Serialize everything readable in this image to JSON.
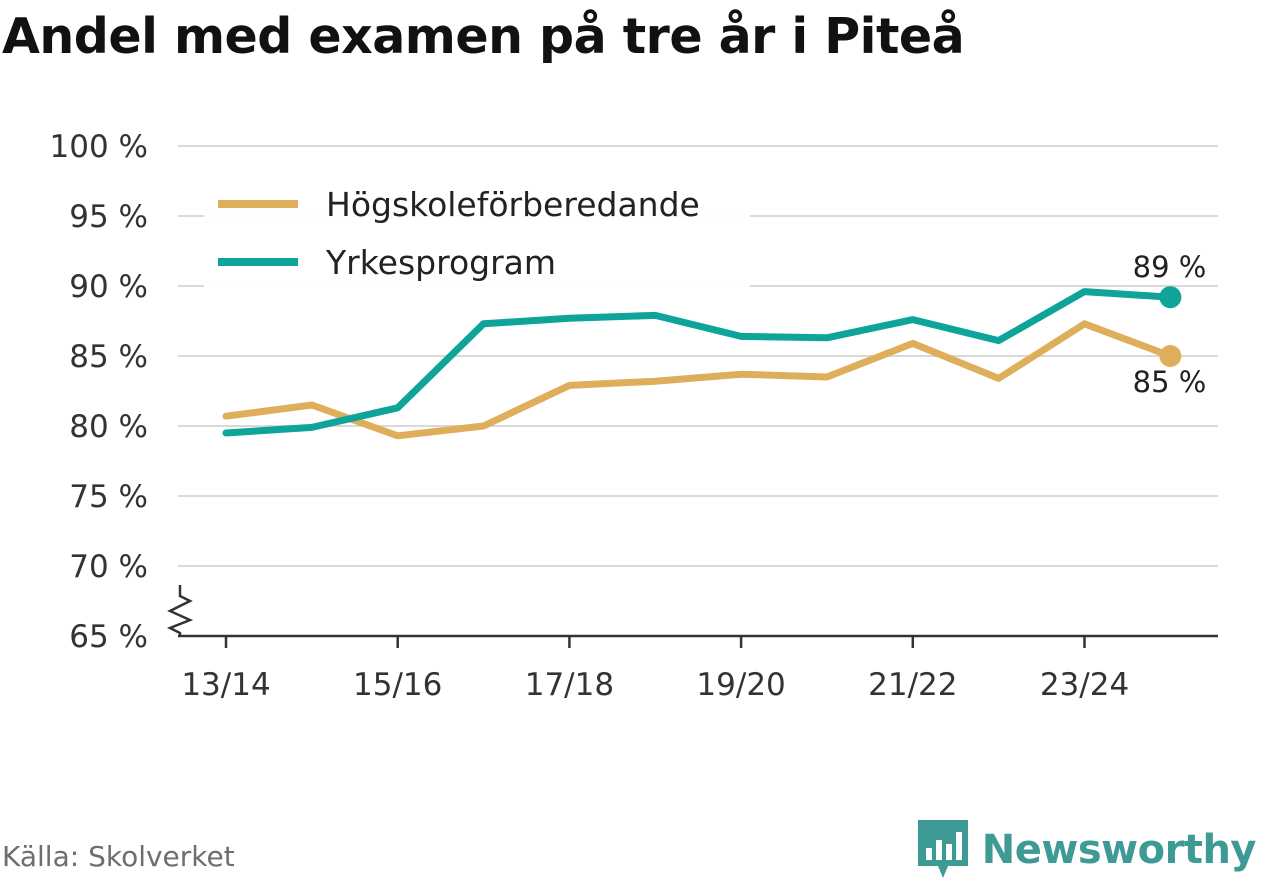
{
  "chart_data": {
    "type": "line",
    "title": "Andel med examen på tre år i Piteå",
    "x": [
      "13/14",
      "14/15",
      "15/16",
      "16/17",
      "17/18",
      "18/19",
      "19/20",
      "20/21",
      "21/22",
      "22/23",
      "23/24",
      "24/25"
    ],
    "x_tick_labels": [
      "13/14",
      "15/16",
      "17/18",
      "19/20",
      "21/22",
      "23/24"
    ],
    "y_tick_labels": [
      "100 %",
      "95 %",
      "90 %",
      "85 %",
      "80 %",
      "75 %",
      "70 %",
      "65 %"
    ],
    "ylim": [
      65,
      100
    ],
    "y_axis_break": true,
    "grid": true,
    "legend_position": "top-left",
    "series": [
      {
        "name": "Högskoleförberedande",
        "color": "#deae5a",
        "values": [
          80.7,
          81.5,
          79.3,
          80.0,
          82.9,
          83.2,
          83.7,
          83.5,
          85.9,
          83.4,
          87.3,
          85.0
        ],
        "end_label": "85 %"
      },
      {
        "name": "Yrkesprogram",
        "color": "#0ea499",
        "values": [
          79.5,
          79.9,
          81.3,
          87.3,
          87.7,
          87.9,
          86.4,
          86.3,
          87.6,
          86.1,
          89.6,
          89.2
        ],
        "end_label": "89 %"
      }
    ]
  },
  "source": "Källa: Skolverket",
  "brand": {
    "name": "Newsworthy",
    "color": "#3d9a94"
  }
}
